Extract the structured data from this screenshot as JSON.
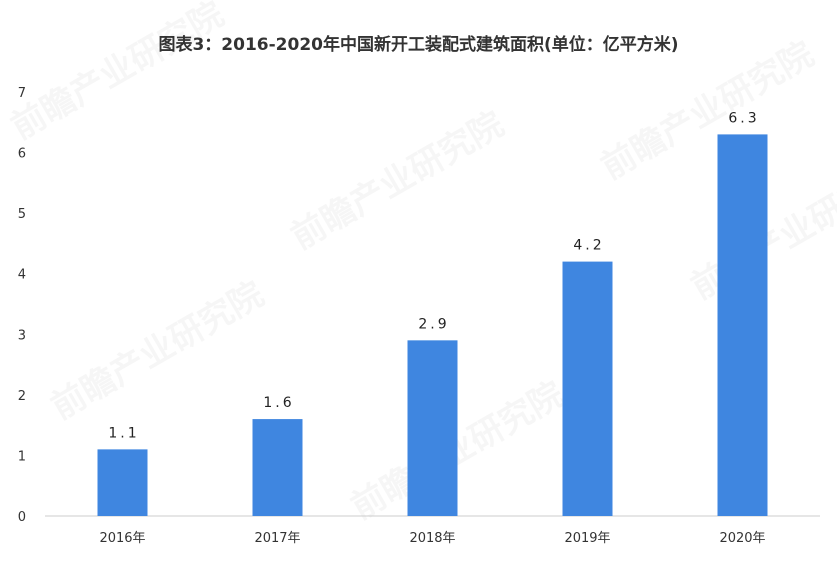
{
  "chart_data": {
    "type": "bar",
    "title": "图表3：2016-2020年中国新开工装配式建筑面积(单位：亿平方米)",
    "categories": [
      "2016年",
      "2017年",
      "2018年",
      "2019年",
      "2020年"
    ],
    "values": [
      1.1,
      1.6,
      2.9,
      4.2,
      6.3
    ],
    "value_labels": [
      "1.1",
      "1.6",
      "2.9",
      "4.2",
      "6.3"
    ],
    "ylim": [
      0,
      7
    ],
    "yticks": [
      "0",
      "1",
      "2",
      "3",
      "4",
      "5",
      "6",
      "7"
    ],
    "grid": false,
    "legend": "none",
    "bar_color": "#3f86e0"
  },
  "watermark": "前瞻产业研究院"
}
